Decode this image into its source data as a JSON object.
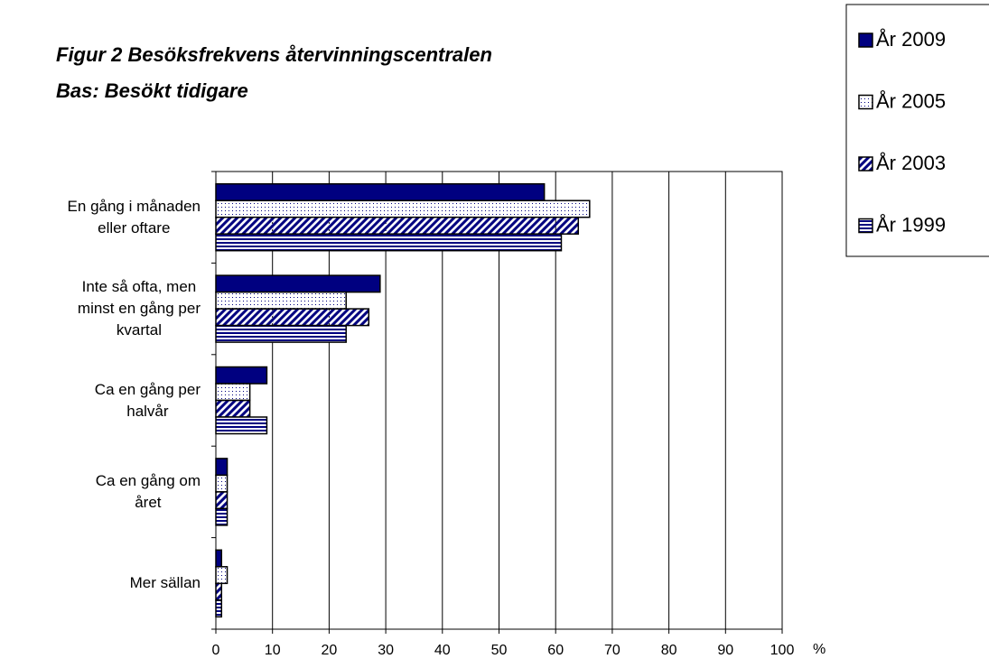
{
  "chart_data": {
    "type": "hbar",
    "title": "Figur 2  Besöksfrekvens återvinningscentralen",
    "subtitle": "Bas: Besökt tidigare",
    "x_label": "%",
    "categories": [
      "En gång i månaden\neller oftare",
      "Inte så ofta, men\nminst en gång per\nkvartal",
      "Ca en gång per\nhalvår",
      "Ca en gång om\nåret",
      "Mer sällan"
    ],
    "series": [
      {
        "name": "År 2009",
        "color": "#000080",
        "pattern": "solid",
        "values": [
          58,
          29,
          9,
          2,
          1
        ]
      },
      {
        "name": "År 2005",
        "color": "#000080",
        "pattern": "dots",
        "values": [
          66,
          23,
          6,
          2,
          2
        ]
      },
      {
        "name": "År 2003",
        "color": "#000080",
        "pattern": "diagonal",
        "values": [
          64,
          27,
          6,
          2,
          1
        ]
      },
      {
        "name": "År 1999",
        "color": "#000080",
        "pattern": "horizontal",
        "values": [
          61,
          23,
          9,
          2,
          1
        ]
      }
    ],
    "xlim": [
      0,
      100
    ],
    "xticks": [
      0,
      10,
      20,
      30,
      40,
      50,
      60,
      70,
      80,
      90,
      100
    ],
    "grid": true
  }
}
